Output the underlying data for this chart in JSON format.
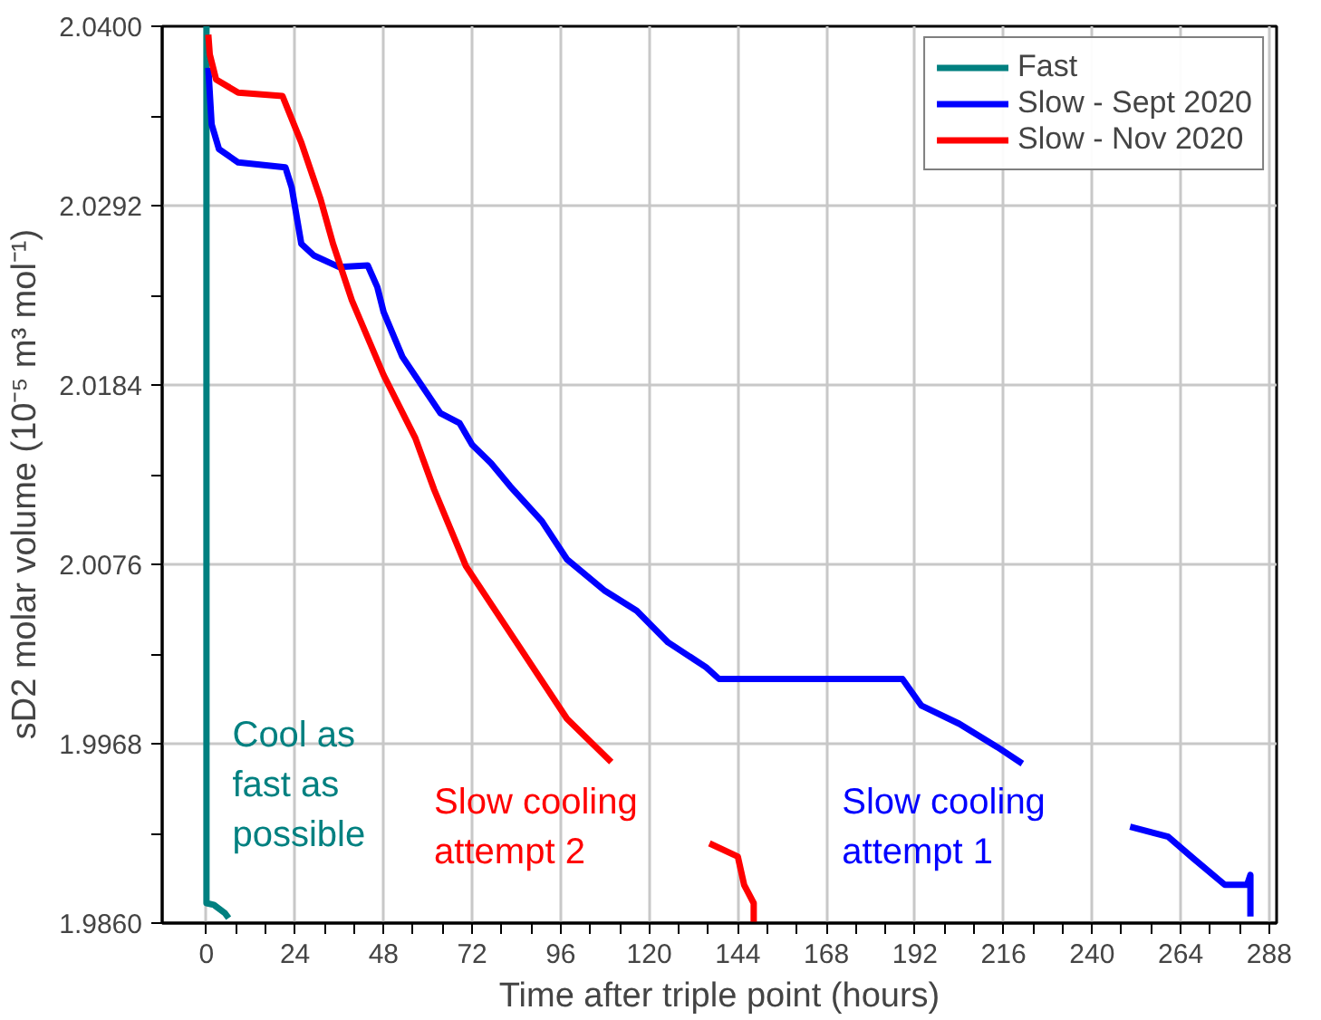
{
  "chart_data": {
    "type": "line",
    "xlabel": "Time after triple point (hours)",
    "ylabel": "sD2 molar   volume (10⁻⁵ m³ mol⁻¹)",
    "xlim": [
      -12,
      290
    ],
    "ylim": [
      1.986,
      2.04
    ],
    "xticks": [
      0,
      {
        "value": 8,
        "label": null
      },
      {
        "value": 16,
        "label": null
      },
      24,
      {
        "value": 32,
        "label": null
      },
      {
        "value": 40,
        "label": null
      },
      48,
      {
        "value": 56,
        "label": null
      },
      {
        "value": 64,
        "label": null
      },
      72,
      {
        "value": 80,
        "label": null
      },
      {
        "value": 88,
        "label": null
      },
      96,
      {
        "value": 104,
        "label": null
      },
      {
        "value": 112,
        "label": null
      },
      120,
      {
        "value": 128,
        "label": null
      },
      {
        "value": 136,
        "label": null
      },
      144,
      {
        "value": 152,
        "label": null
      },
      {
        "value": 160,
        "label": null
      },
      168,
      {
        "value": 176,
        "label": null
      },
      {
        "value": 184,
        "label": null
      },
      192,
      {
        "value": 200,
        "label": null
      },
      {
        "value": 208,
        "label": null
      },
      216,
      {
        "value": 224,
        "label": null
      },
      {
        "value": 232,
        "label": null
      },
      240,
      {
        "value": 248,
        "label": null
      },
      {
        "value": 256,
        "label": null
      },
      264,
      {
        "value": 272,
        "label": null
      },
      {
        "value": 280,
        "label": null
      },
      288
    ],
    "yticks": [
      {
        "value": 1.986,
        "label": "1.9860"
      },
      {
        "value": 1.9914,
        "label": null
      },
      {
        "value": 1.9968,
        "label": "1.9968"
      },
      {
        "value": 2.0022,
        "label": null
      },
      {
        "value": 2.0076,
        "label": "2.0076"
      },
      {
        "value": 2.013,
        "label": null
      },
      {
        "value": 2.0184,
        "label": "2.0184"
      },
      {
        "value": 2.0238,
        "label": null
      },
      {
        "value": 2.0292,
        "label": "2.0292"
      },
      {
        "value": 2.0346,
        "label": null
      },
      {
        "value": 2.04,
        "label": "2.0400"
      }
    ],
    "grid": true,
    "legend": "top right",
    "marker": "none",
    "line_style": "solid",
    "series": [
      {
        "name": "Fast",
        "color": "#008080",
        "x": [
          0,
          0,
          2,
          5,
          6
        ],
        "values": [
          2.04,
          1.9872,
          1.9871,
          1.9866,
          1.9863
        ]
      },
      {
        "name": "Slow - Sept 2020",
        "color": "#0000ff",
        "x": [
          0.5,
          1.4,
          3.4,
          8.6,
          21.4,
          23.1,
          25.7,
          29.1,
          36,
          43.7,
          46.3,
          48,
          53.1,
          63.4,
          68.6,
          72,
          77.1,
          82.3,
          90.9,
          97.7,
          108,
          116.6,
          125.1,
          135.4,
          138.9,
          188.6,
          193.7,
          204,
          214.3,
          221.1,
          235,
          250.3,
          260.6,
          267.4,
          276,
          282,
          282.9,
          282.9
        ],
        "values": [
          2.0375,
          2.0341,
          2.0326,
          2.0318,
          2.0315,
          2.0303,
          2.0269,
          2.0262,
          2.0255,
          2.0256,
          2.0243,
          2.0228,
          2.0201,
          2.0167,
          2.0161,
          2.0148,
          2.0137,
          2.0123,
          2.0102,
          2.0079,
          2.006,
          2.0048,
          2.0029,
          2.0014,
          2.0007,
          2.0007,
          1.9991,
          1.998,
          1.9966,
          1.9956,
          null,
          1.9918,
          1.9912,
          1.9899,
          1.9883,
          1.9883,
          1.9889,
          1.9864
        ]
      },
      {
        "name": "Slow - Nov 2020",
        "color": "#ff0000",
        "x": [
          0.5,
          0.9,
          2.6,
          8.6,
          20.6,
          25.7,
          30.9,
          34.3,
          39.4,
          48,
          56.6,
          61.7,
          70.3,
          84,
          97.7,
          109.7,
          120,
          136.3,
          144,
          145.7,
          148.3,
          148.3
        ],
        "values": [
          2.0395,
          2.0383,
          2.0368,
          2.036,
          2.0358,
          2.033,
          2.0296,
          2.0269,
          2.0235,
          2.019,
          2.0152,
          2.0121,
          2.0075,
          2.0029,
          1.9983,
          1.9957,
          null,
          1.9908,
          1.99,
          1.9883,
          1.9872,
          1.986
        ]
      }
    ],
    "annotations": [
      "Cool as\nfast as\npossible",
      "Slow cooling\nattempt 1",
      "Slow cooling\nattempt 2"
    ]
  }
}
